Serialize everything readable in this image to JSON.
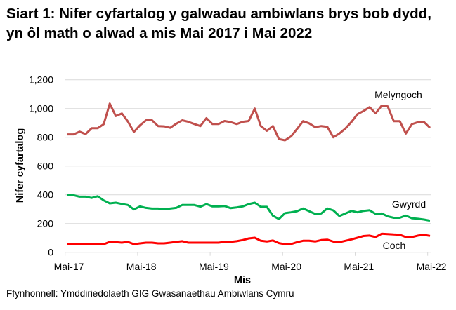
{
  "chart_data": {
    "type": "line",
    "title": "Siart 1: Nifer cyfartalog y galwadau ambiwlans brys bob dydd, yn ôl math o alwad a mis Mai 2017 i Mai 2022",
    "xlabel": "Mis",
    "ylabel": "Nifer cyfartalog",
    "ylim": [
      0,
      1200
    ],
    "yticks": [
      "0",
      "200",
      "400",
      "600",
      "800",
      "1,000",
      "1,200"
    ],
    "ytick_values": [
      0,
      200,
      400,
      600,
      800,
      1000,
      1200
    ],
    "xtick_labels": [
      "Mai-17",
      "Mai-18",
      "Mai-19",
      "Mai-20",
      "Mai-21",
      "Mai-22"
    ],
    "grid": "horizontal",
    "legend": "inline labels at line ends",
    "categories": [
      "Mai-17",
      "Meh-17",
      "Gor-17",
      "Awst-17",
      "Medi-17",
      "Hyd-17",
      "Tach-17",
      "Rhag-17",
      "Ion-18",
      "Chwe-18",
      "Maw-18",
      "Ebr-18",
      "Mai-18",
      "Meh-18",
      "Gor-18",
      "Awst-18",
      "Medi-18",
      "Hyd-18",
      "Tach-18",
      "Rhag-18",
      "Ion-19",
      "Chwe-19",
      "Maw-19",
      "Ebr-19",
      "Mai-19",
      "Meh-19",
      "Gor-19",
      "Awst-19",
      "Medi-19",
      "Hyd-19",
      "Tach-19",
      "Rhag-19",
      "Ion-20",
      "Chwe-20",
      "Maw-20",
      "Ebr-20",
      "Mai-20",
      "Meh-20",
      "Gor-20",
      "Awst-20",
      "Medi-20",
      "Hyd-20",
      "Tach-20",
      "Rhag-20",
      "Ion-21",
      "Chwe-21",
      "Maw-21",
      "Ebr-21",
      "Mai-21",
      "Meh-21",
      "Gor-21",
      "Awst-21",
      "Medi-21",
      "Hyd-21",
      "Tach-21",
      "Rhag-21",
      "Ion-22",
      "Chwe-22",
      "Maw-22",
      "Ebr-22",
      "Mai-22"
    ],
    "series": [
      {
        "name": "Melyngoch",
        "color": "#C0504D",
        "values": [
          820,
          820,
          839,
          822,
          863,
          863,
          891,
          1034,
          948,
          966,
          910,
          837,
          883,
          918,
          918,
          878,
          876,
          866,
          894,
          918,
          908,
          892,
          878,
          933,
          892,
          892,
          913,
          906,
          892,
          908,
          913,
          1000,
          878,
          845,
          878,
          788,
          779,
          806,
          858,
          912,
          897,
          870,
          878,
          873,
          800,
          826,
          861,
          907,
          961,
          983,
          1010,
          967,
          1020,
          1015,
          912,
          912,
          826,
          891,
          905,
          907,
          866
        ]
      },
      {
        "name": "Gwyrdd",
        "color": "#00B050",
        "values": [
          397,
          397,
          387,
          387,
          378,
          390,
          361,
          340,
          345,
          336,
          329,
          298,
          319,
          309,
          304,
          304,
          299,
          304,
          309,
          329,
          329,
          329,
          317,
          335,
          319,
          319,
          322,
          307,
          312,
          319,
          335,
          345,
          316,
          316,
          254,
          231,
          272,
          278,
          286,
          305,
          286,
          267,
          270,
          305,
          291,
          252,
          270,
          288,
          278,
          288,
          292,
          267,
          270,
          250,
          240,
          240,
          255,
          237,
          233,
          228,
          220
        ]
      },
      {
        "name": "Coch",
        "color": "#FF0000",
        "values": [
          56,
          56,
          56,
          56,
          56,
          56,
          56,
          72,
          70,
          67,
          72,
          56,
          62,
          67,
          67,
          62,
          62,
          67,
          72,
          77,
          67,
          67,
          67,
          67,
          67,
          67,
          72,
          72,
          77,
          85,
          96,
          101,
          80,
          75,
          82,
          64,
          56,
          57,
          70,
          80,
          80,
          75,
          85,
          88,
          74,
          70,
          80,
          90,
          101,
          113,
          116,
          106,
          129,
          127,
          124,
          122,
          106,
          106,
          116,
          121,
          114
        ]
      }
    ],
    "source": "Ffynhonnell: Ymddiriedolaeth GIG Gwasanaethau Ambiwlans Cymru"
  }
}
